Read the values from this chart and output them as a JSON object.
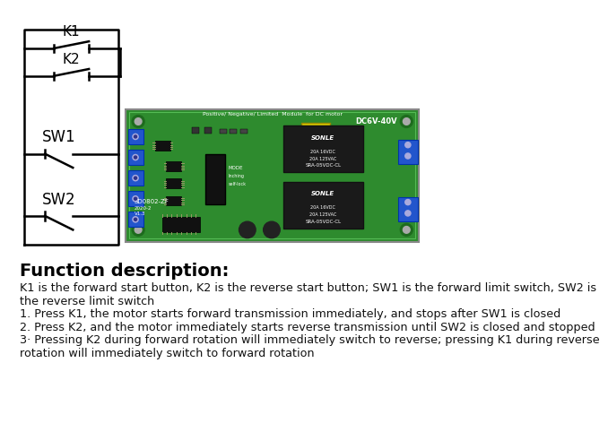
{
  "bg_color": "#ffffff",
  "title": "Function description:",
  "title_fontsize": 14,
  "body_fontsize": 9.2,
  "line0": "K1 is the forward start button, K2 is the reverse start button; SW1 is the forward limit switch, SW2 is",
  "line1": "the reverse limit switch",
  "line2": "1. Press K1, the motor starts forward transmission immediately, and stops after SW1 is closed",
  "line3": "2. Press K2, and the motor immediately starts reverse transmission until SW2 is closed and stopped",
  "line4": "3· Pressing K2 during forward rotation will immediately switch to reverse; pressing K1 during reverse",
  "line5": "rotation will immediately switch to forward rotation",
  "pcb_green": "#2e8b2e",
  "pcb_green_light": "#3aaa3a",
  "pcb_border": "#bbbbbb",
  "blue_terminal": "#2255cc",
  "yellow_cap": "#ddcc00",
  "relay_black": "#1a1a1a",
  "circuit_lw": 1.8
}
